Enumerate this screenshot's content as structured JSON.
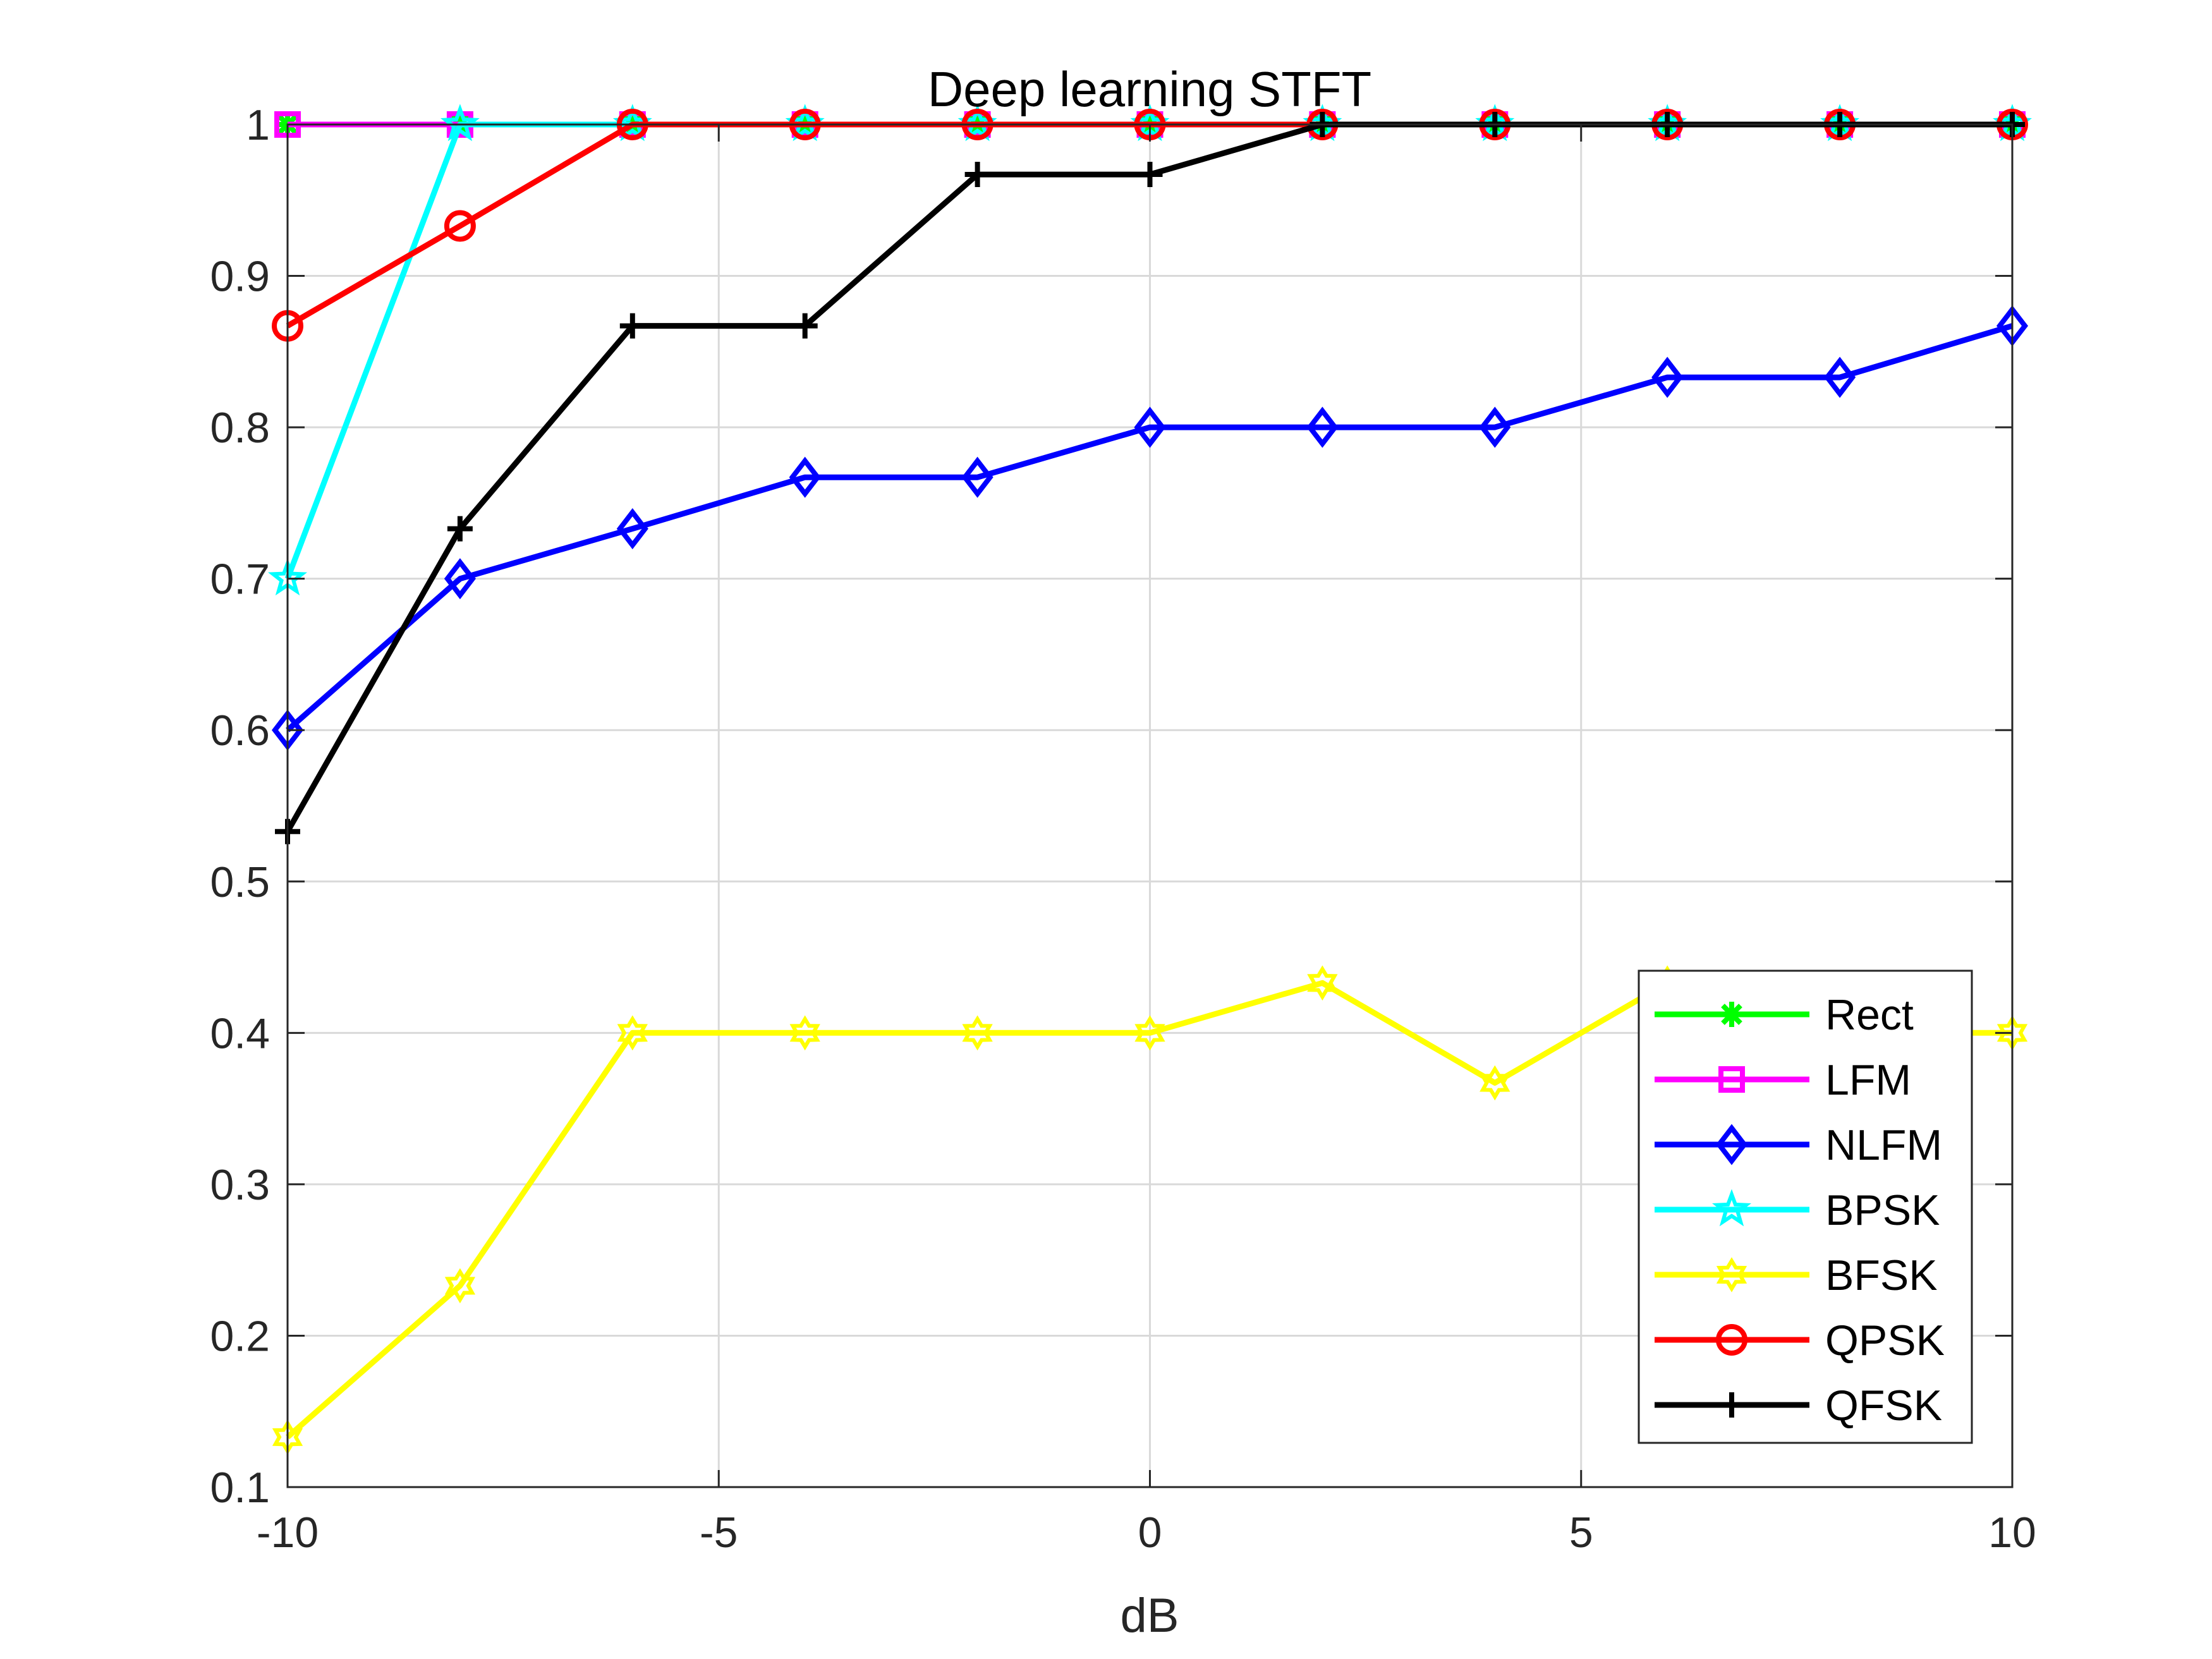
{
  "chart_data": {
    "type": "line",
    "title": "Deep learning STFT",
    "xlabel": "dB",
    "ylabel": "",
    "xlim": [
      -10,
      10
    ],
    "ylim": [
      0.1,
      1
    ],
    "x": [
      -10,
      -8,
      -6,
      -4,
      -2,
      0,
      2,
      4,
      6,
      8,
      10
    ],
    "xticks": [
      -10,
      -5,
      0,
      5,
      10
    ],
    "yticks": [
      0.1,
      0.2,
      0.3,
      0.4,
      0.5,
      0.6,
      0.7,
      0.8,
      0.9,
      1
    ],
    "xtick_labels": [
      "-10",
      "-5",
      "0",
      "5",
      "10"
    ],
    "ytick_labels": [
      "0.1",
      "0.2",
      "0.3",
      "0.4",
      "0.5",
      "0.6",
      "0.7",
      "0.8",
      "0.9",
      "1"
    ],
    "grid": true,
    "legend_position": "bottom-right",
    "series": [
      {
        "name": "Rect",
        "color": "#00ff00",
        "marker": "asterisk",
        "values": [
          1,
          1,
          1,
          1,
          1,
          1,
          1,
          1,
          1,
          1,
          1
        ]
      },
      {
        "name": "LFM",
        "color": "#ff00ff",
        "marker": "square",
        "values": [
          1,
          1,
          1,
          1,
          1,
          1,
          1,
          1,
          1,
          1,
          1
        ]
      },
      {
        "name": "NLFM",
        "color": "#0000ff",
        "marker": "diamond",
        "values": [
          0.6,
          0.7,
          0.733,
          0.767,
          0.767,
          0.8,
          0.8,
          0.8,
          0.833,
          0.833,
          0.867
        ]
      },
      {
        "name": "BPSK",
        "color": "#00ffff",
        "marker": "pentagram",
        "values": [
          0.7,
          1,
          1,
          1,
          1,
          1,
          1,
          1,
          1,
          1,
          1
        ]
      },
      {
        "name": "BFSK",
        "color": "#ffff00",
        "marker": "hexagram",
        "values": [
          0.133,
          0.233,
          0.4,
          0.4,
          0.4,
          0.4,
          0.433,
          0.367,
          0.433,
          0.4,
          0.4
        ]
      },
      {
        "name": "QPSK",
        "color": "#ff0000",
        "marker": "circle",
        "values": [
          0.867,
          0.933,
          1,
          1,
          1,
          1,
          1,
          1,
          1,
          1,
          1
        ]
      },
      {
        "name": "QFSK",
        "color": "#000000",
        "marker": "plus",
        "values": [
          0.533,
          0.733,
          0.867,
          0.867,
          0.967,
          0.967,
          1,
          1,
          1,
          1,
          1
        ]
      }
    ]
  }
}
